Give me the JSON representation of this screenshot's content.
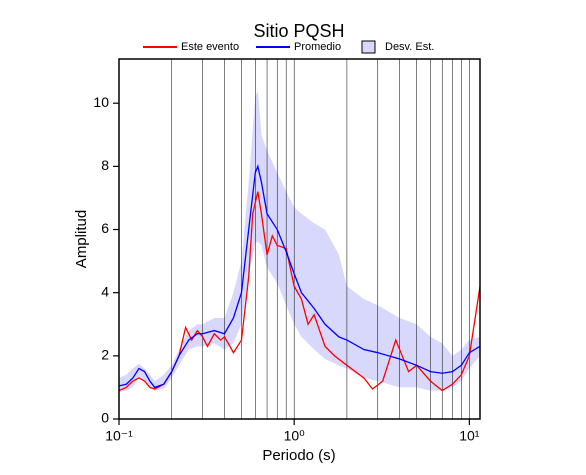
{
  "chart_data": {
    "type": "line",
    "title": "Sitio PQSH",
    "x_label": "Periodo (s)",
    "y_label": "Amplitud",
    "xscale": "log",
    "xlim": [
      0.1,
      11.5
    ],
    "ylim": [
      0,
      11.4
    ],
    "xticks": [
      {
        "value": 0.1,
        "label": "10⁻¹"
      },
      {
        "value": 1,
        "label": "10⁰"
      },
      {
        "value": 10,
        "label": "10¹"
      }
    ],
    "yticks": [
      0,
      2,
      4,
      6,
      8,
      10
    ],
    "xgrid": [
      0.2,
      0.3,
      0.4,
      0.5,
      0.6,
      0.7,
      0.8,
      0.9,
      1,
      2,
      3,
      4,
      5,
      6,
      7,
      8,
      9,
      10
    ],
    "series": [
      {
        "name": "Este evento",
        "color": "#ff0000",
        "x": [
          0.1,
          0.11,
          0.12,
          0.13,
          0.14,
          0.15,
          0.16,
          0.18,
          0.2,
          0.22,
          0.24,
          0.26,
          0.28,
          0.3,
          0.32,
          0.35,
          0.38,
          0.4,
          0.43,
          0.45,
          0.5,
          0.55,
          0.58,
          0.62,
          0.65,
          0.7,
          0.75,
          0.8,
          0.9,
          1.0,
          1.1,
          1.2,
          1.3,
          1.5,
          1.7,
          2.0,
          2.5,
          2.8,
          3.2,
          3.8,
          4.5,
          5,
          6,
          7,
          8,
          9,
          10,
          11,
          11.5
        ],
        "values": [
          0.9,
          1.0,
          1.2,
          1.3,
          1.2,
          1.0,
          0.95,
          1.1,
          1.5,
          2.0,
          2.9,
          2.5,
          2.8,
          2.6,
          2.3,
          2.7,
          2.5,
          2.6,
          2.3,
          2.1,
          2.5,
          4.5,
          6.5,
          7.2,
          6.5,
          5.2,
          5.8,
          5.5,
          5.4,
          4.2,
          3.8,
          3.0,
          3.3,
          2.3,
          2.0,
          1.7,
          1.3,
          0.95,
          1.2,
          2.5,
          1.5,
          1.7,
          1.2,
          0.9,
          1.1,
          1.4,
          2.0,
          3.5,
          4.2
        ]
      },
      {
        "name": "Promedio",
        "color": "#0000ff",
        "x": [
          0.1,
          0.11,
          0.12,
          0.13,
          0.14,
          0.15,
          0.16,
          0.18,
          0.2,
          0.22,
          0.25,
          0.28,
          0.3,
          0.35,
          0.4,
          0.45,
          0.5,
          0.55,
          0.6,
          0.62,
          0.65,
          0.7,
          0.8,
          0.9,
          1.0,
          1.1,
          1.3,
          1.5,
          1.8,
          2.0,
          2.5,
          3,
          4,
          5,
          6,
          7,
          8,
          9,
          10,
          11.5
        ],
        "values": [
          1.05,
          1.1,
          1.3,
          1.6,
          1.5,
          1.2,
          1.0,
          1.1,
          1.5,
          2.0,
          2.5,
          2.7,
          2.7,
          2.8,
          2.7,
          3.2,
          4.0,
          6.0,
          7.8,
          8.0,
          7.5,
          6.5,
          6.0,
          5.3,
          4.6,
          4.0,
          3.5,
          3.0,
          2.6,
          2.5,
          2.2,
          2.1,
          1.9,
          1.7,
          1.5,
          1.45,
          1.5,
          1.7,
          2.1,
          2.3
        ]
      }
    ],
    "band": {
      "name": "Desv. Est.",
      "color": "#d8d8fc",
      "x": [
        0.1,
        0.11,
        0.12,
        0.13,
        0.14,
        0.15,
        0.16,
        0.18,
        0.2,
        0.22,
        0.25,
        0.28,
        0.3,
        0.35,
        0.4,
        0.45,
        0.5,
        0.55,
        0.6,
        0.62,
        0.65,
        0.7,
        0.8,
        0.9,
        1.0,
        1.1,
        1.3,
        1.5,
        1.8,
        2.0,
        2.5,
        3,
        4,
        5,
        6,
        7,
        8,
        9,
        10,
        11.5
      ],
      "upper": [
        1.3,
        1.4,
        1.6,
        1.75,
        1.6,
        1.4,
        1.2,
        1.4,
        1.7,
        2.2,
        2.8,
        3.0,
        3.0,
        3.2,
        3.2,
        4.0,
        5.0,
        7.5,
        10.2,
        10.4,
        9.0,
        8.5,
        7.8,
        7.2,
        6.7,
        6.5,
        6.2,
        6.0,
        5.2,
        4.2,
        3.8,
        3.6,
        3.2,
        3.0,
        2.6,
        2.4,
        2.0,
        2.2,
        2.5,
        2.6
      ],
      "lower": [
        0.85,
        0.9,
        1.0,
        1.3,
        1.2,
        1.0,
        0.9,
        0.95,
        1.3,
        1.7,
        2.2,
        2.3,
        2.3,
        2.4,
        2.2,
        2.4,
        3.0,
        4.5,
        5.6,
        5.6,
        5.5,
        4.8,
        4.3,
        3.6,
        3.0,
        2.6,
        2.2,
        1.9,
        1.7,
        1.6,
        1.3,
        1.2,
        1.0,
        1.0,
        0.9,
        0.9,
        1.0,
        1.2,
        1.6,
        2.0
      ]
    }
  }
}
